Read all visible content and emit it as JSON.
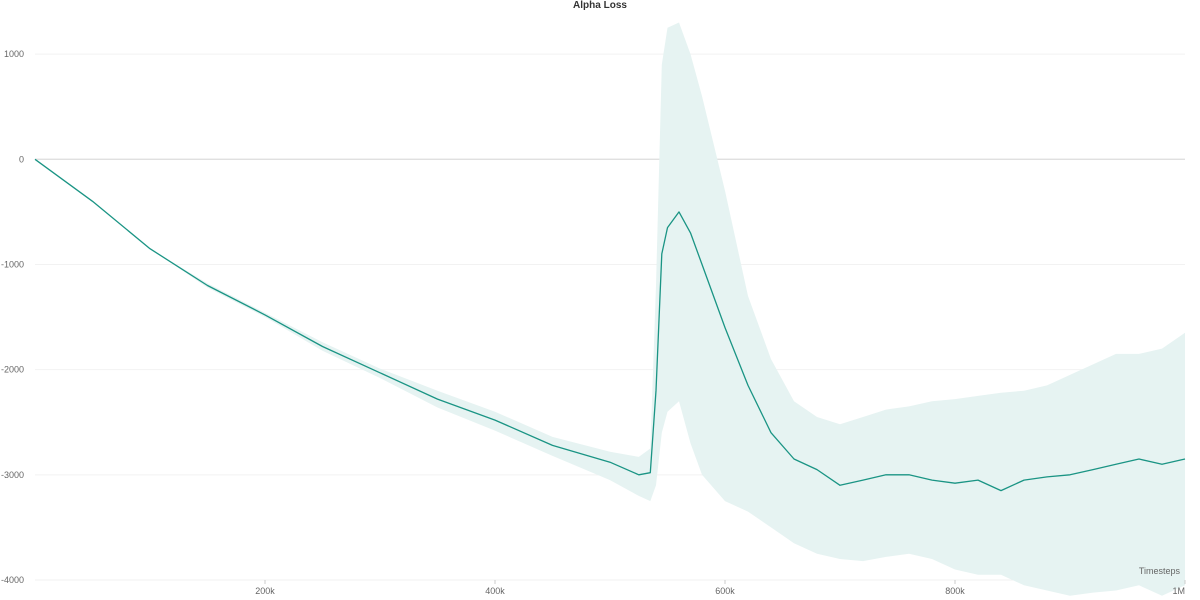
{
  "chart_data": {
    "type": "line",
    "title": "Alpha Loss",
    "xlabel": "Timesteps",
    "ylabel": "",
    "xlim": [
      0,
      1000000
    ],
    "ylim": [
      -4000,
      1400
    ],
    "grid": true,
    "x_ticks": [
      {
        "value": 200000,
        "label": "200k"
      },
      {
        "value": 400000,
        "label": "400k"
      },
      {
        "value": 600000,
        "label": "600k"
      },
      {
        "value": 800000,
        "label": "800k"
      },
      {
        "value": 1000000,
        "label": "1M"
      }
    ],
    "y_ticks": [
      {
        "value": 1000,
        "label": "1000"
      },
      {
        "value": 0,
        "label": "0"
      },
      {
        "value": -1000,
        "label": "-1000"
      },
      {
        "value": -2000,
        "label": "-2000"
      },
      {
        "value": -3000,
        "label": "-3000"
      },
      {
        "value": -4000,
        "label": "-4000"
      }
    ],
    "series": [
      {
        "color": "#1a9484",
        "band_color": "#e6f3f2",
        "x": [
          0,
          50000,
          100000,
          150000,
          200000,
          250000,
          300000,
          350000,
          400000,
          450000,
          500000,
          525000,
          535000,
          540000,
          545000,
          550000,
          560000,
          570000,
          580000,
          600000,
          620000,
          640000,
          660000,
          680000,
          700000,
          720000,
          740000,
          760000,
          780000,
          800000,
          820000,
          840000,
          860000,
          880000,
          900000,
          920000,
          940000,
          960000,
          980000,
          1000000
        ],
        "values": [
          0,
          -400,
          -850,
          -1200,
          -1480,
          -1780,
          -2030,
          -2280,
          -2480,
          -2720,
          -2880,
          -3000,
          -2980,
          -2200,
          -900,
          -650,
          -500,
          -700,
          -1000,
          -1600,
          -2150,
          -2600,
          -2850,
          -2950,
          -3100,
          -3050,
          -3000,
          -3000,
          -3050,
          -3080,
          -3050,
          -3150,
          -3050,
          -3020,
          -3000,
          -2950,
          -2900,
          -2850,
          -2900,
          -2850
        ],
        "lower": [
          0,
          -400,
          -850,
          -1220,
          -1500,
          -1820,
          -2080,
          -2360,
          -2580,
          -2820,
          -3050,
          -3200,
          -3250,
          -3100,
          -2600,
          -2400,
          -2300,
          -2700,
          -3000,
          -3250,
          -3350,
          -3500,
          -3650,
          -3750,
          -3800,
          -3820,
          -3780,
          -3750,
          -3800,
          -3900,
          -3950,
          -3950,
          -4050,
          -4100,
          -4150,
          -4120,
          -4100,
          -4050,
          -4150,
          -4050
        ],
        "upper": [
          0,
          -400,
          -850,
          -1180,
          -1460,
          -1740,
          -1990,
          -2200,
          -2400,
          -2640,
          -2780,
          -2830,
          -2750,
          -1200,
          900,
          1250,
          1300,
          1000,
          600,
          -300,
          -1300,
          -1900,
          -2300,
          -2450,
          -2520,
          -2450,
          -2380,
          -2350,
          -2300,
          -2280,
          -2250,
          -2220,
          -2200,
          -2150,
          -2050,
          -1950,
          -1850,
          -1850,
          -1800,
          -1650
        ]
      }
    ]
  }
}
